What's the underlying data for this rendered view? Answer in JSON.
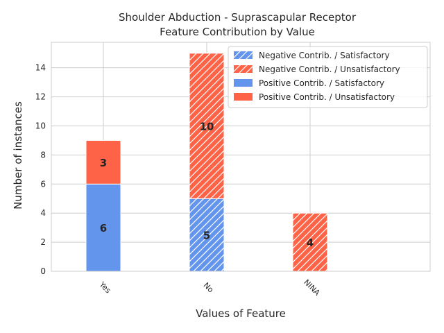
{
  "chart_data": {
    "type": "bar",
    "title": "Shoulder Abduction - Suprascapular Receptor",
    "subtitle": "Feature Contribution by Value",
    "xlabel": "Values of Feature",
    "ylabel": "Number of instances",
    "categories": [
      "Yes",
      "No",
      "NINA"
    ],
    "ylim": [
      0,
      15.75
    ],
    "yticks": [
      0,
      2,
      4,
      6,
      8,
      10,
      12,
      14
    ],
    "grid": true,
    "legend_position": "top-right",
    "series": [
      {
        "name": "Negative Contrib. / Satisfactory",
        "contribution": "negative",
        "values": [
          0,
          5,
          0
        ],
        "color": "#6495ED",
        "hatch": true
      },
      {
        "name": "Negative Contrib. / Unsatisfactory",
        "contribution": "negative",
        "values": [
          0,
          10,
          4
        ],
        "color": "#FF6347",
        "hatch": true
      },
      {
        "name": "Positive Contrib. / Satisfactory",
        "contribution": "positive",
        "values": [
          6,
          0,
          0
        ],
        "color": "#6495ED",
        "hatch": false
      },
      {
        "name": "Positive Contrib. / Unsatisfactory",
        "contribution": "positive",
        "values": [
          3,
          0,
          0
        ],
        "color": "#FF6347",
        "hatch": false
      }
    ],
    "data_labels": [
      {
        "category": "Yes",
        "series": "Positive Contrib. / Satisfactory",
        "text": "6"
      },
      {
        "category": "Yes",
        "series": "Positive Contrib. / Unsatisfactory",
        "text": "3"
      },
      {
        "category": "No",
        "series": "Negative Contrib. / Satisfactory",
        "text": "5"
      },
      {
        "category": "No",
        "series": "Negative Contrib. / Unsatisfactory",
        "text": "10"
      },
      {
        "category": "NINA",
        "series": "Negative Contrib. / Unsatisfactory",
        "text": "4"
      }
    ]
  }
}
